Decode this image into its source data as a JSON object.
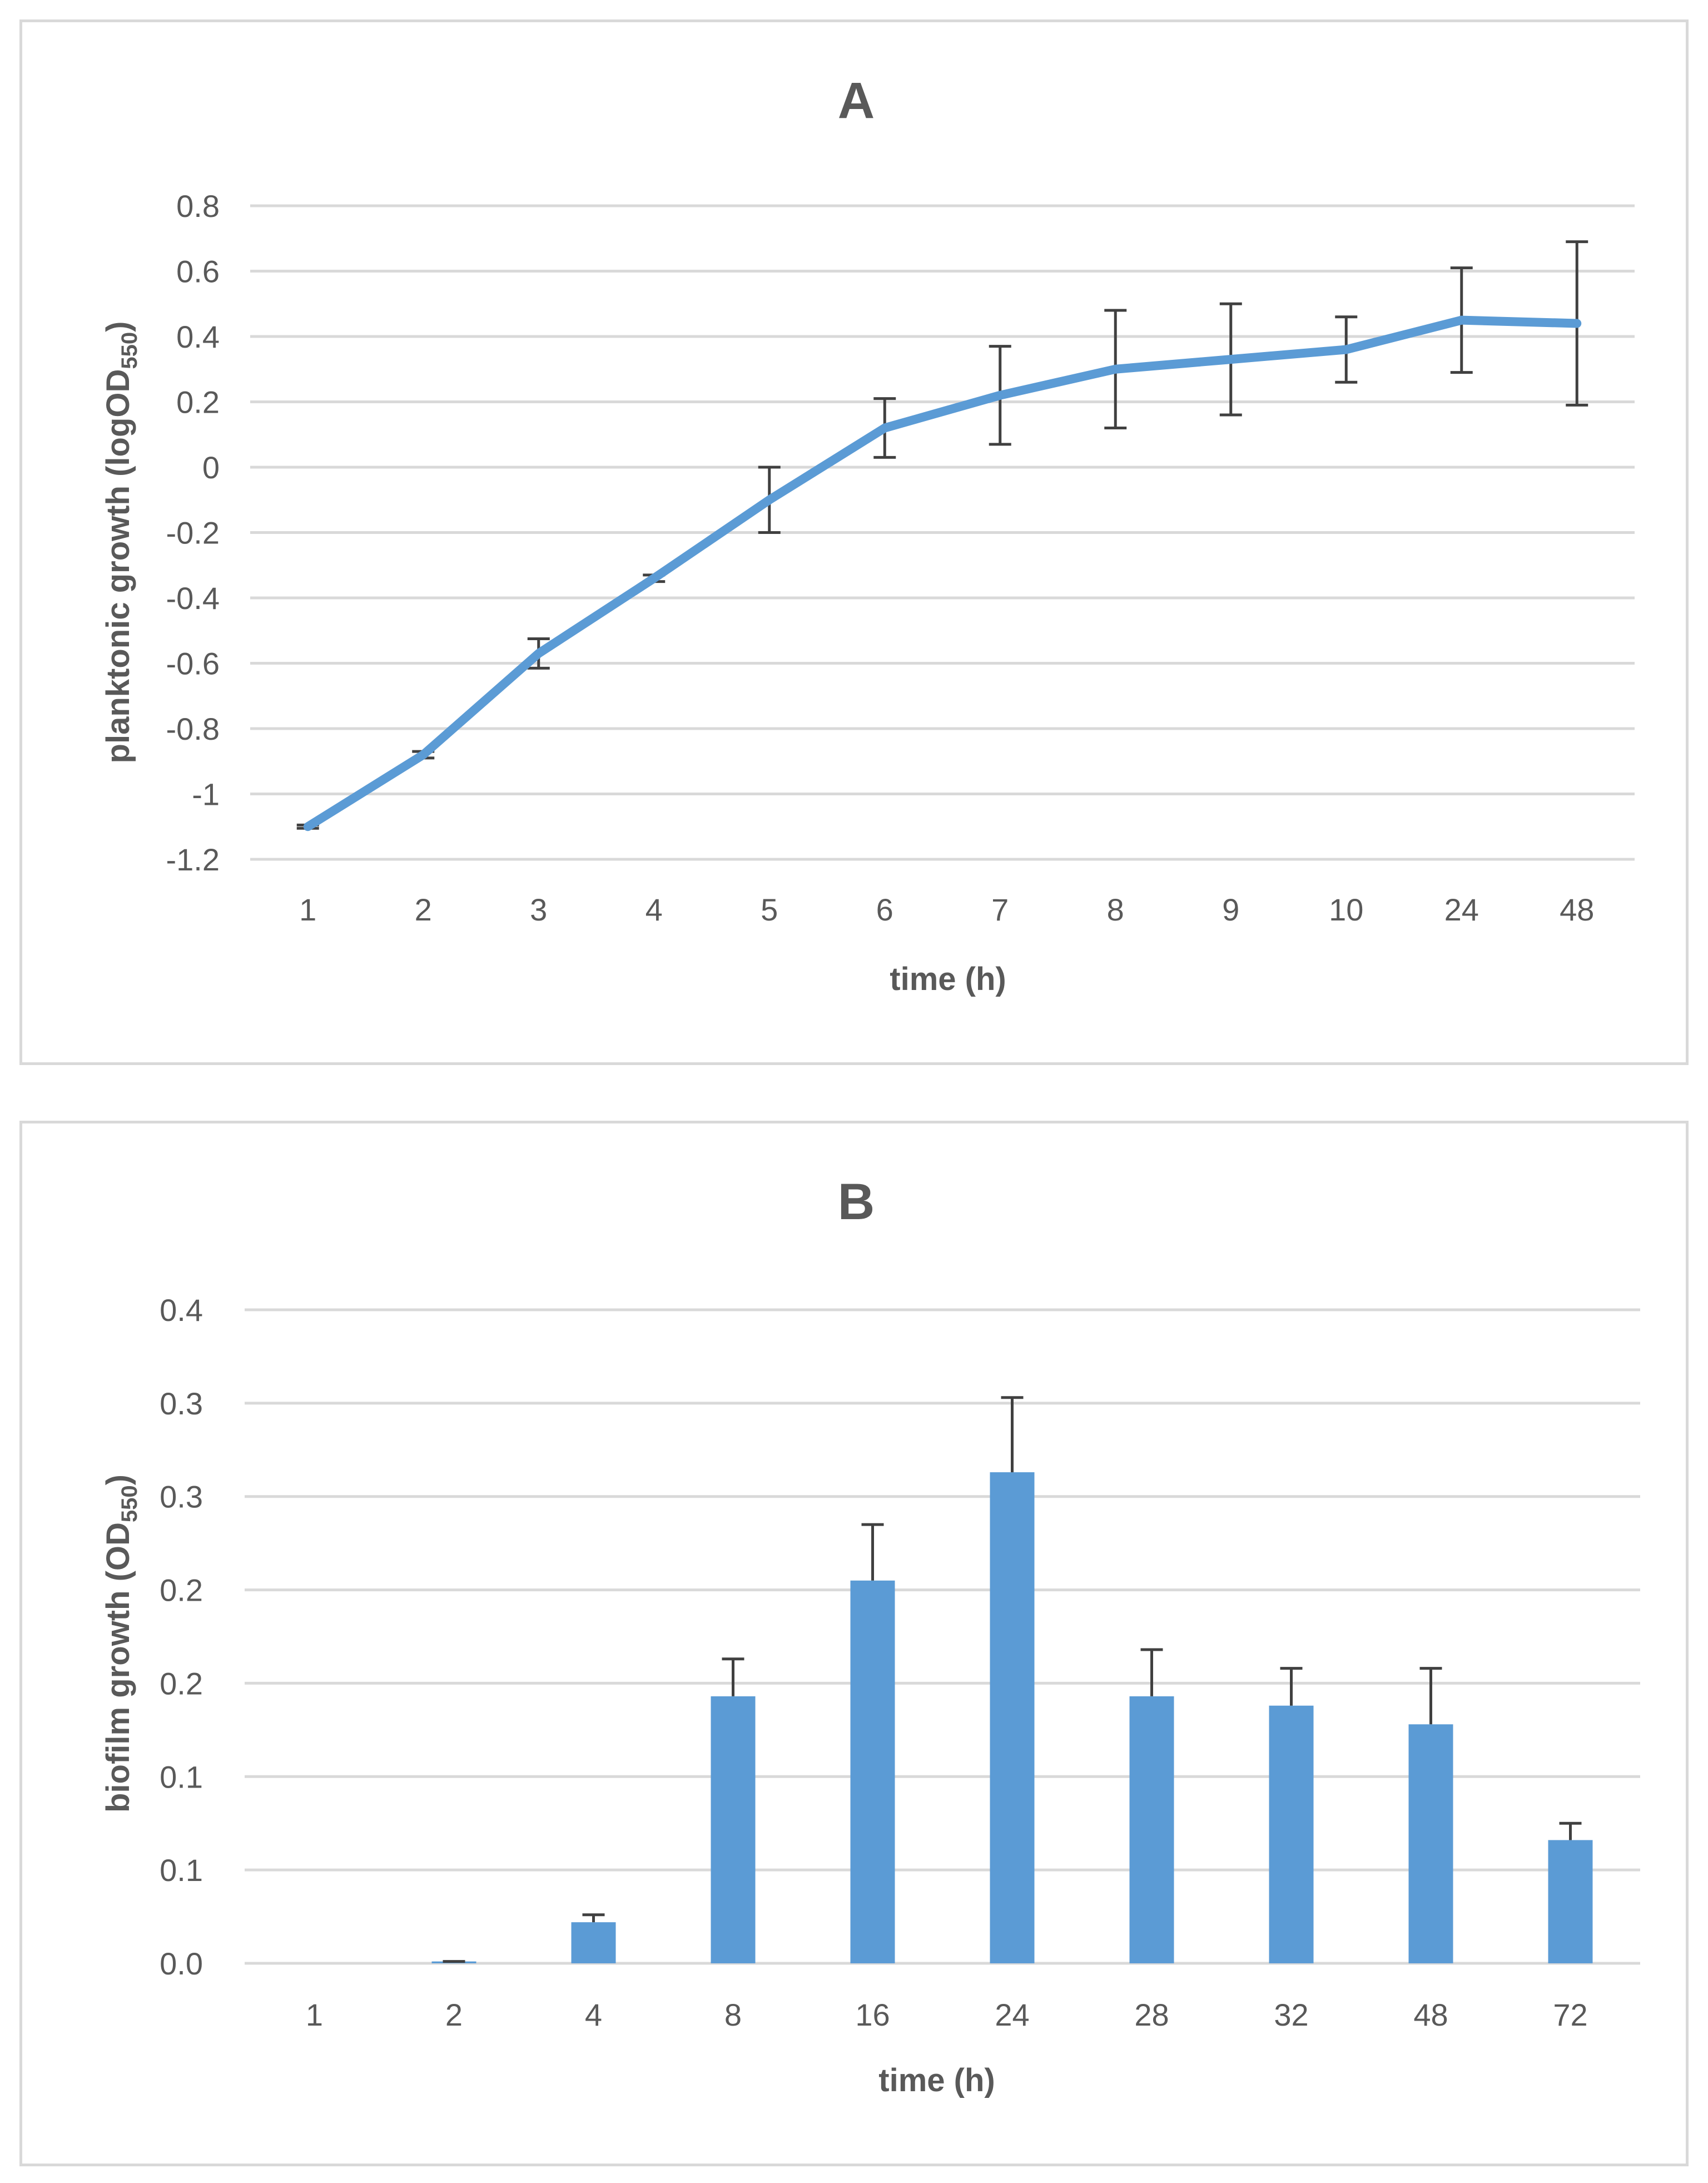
{
  "chart_data": [
    {
      "type": "line",
      "title": "A",
      "xlabel": "time (h)",
      "ylabel_main": "planktonic growth (logOD",
      "ylabel_sub": "550",
      "ylabel_end": ")",
      "categories": [
        "1",
        "2",
        "3",
        "4",
        "5",
        "6",
        "7",
        "8",
        "9",
        "10",
        "24",
        "48"
      ],
      "values": [
        -1.1,
        -0.88,
        -0.57,
        -0.34,
        -0.1,
        0.12,
        0.22,
        0.3,
        0.33,
        0.36,
        0.45,
        0.44
      ],
      "error": [
        0.005,
        0.01,
        0.045,
        0.01,
        0.1,
        0.09,
        0.15,
        0.18,
        0.17,
        0.1,
        0.16,
        0.25
      ],
      "ylim": [
        -1.2,
        0.8
      ],
      "yticks": [
        "0.8",
        "0.6",
        "0.4",
        "0.2",
        "0",
        "-0.2",
        "-0.4",
        "-0.6",
        "-0.8",
        "-1",
        "-1.2"
      ],
      "ytick_values": [
        0.8,
        0.6,
        0.4,
        0.2,
        0,
        -0.2,
        -0.4,
        -0.6,
        -0.8,
        -1,
        -1.2
      ],
      "color": "#5b9bd5",
      "grid": true
    },
    {
      "type": "bar",
      "title": "B",
      "xlabel": "time (h)",
      "ylabel_main": "biofilm growth (OD",
      "ylabel_sub": "550",
      "ylabel_end": ")",
      "categories": [
        "1",
        "2",
        "4",
        "8",
        "16",
        "24",
        "28",
        "32",
        "48",
        "72"
      ],
      "values": [
        0.0,
        0.001,
        0.022,
        0.143,
        0.205,
        0.263,
        0.143,
        0.138,
        0.128,
        0.066
      ],
      "error": [
        0.0,
        0.0,
        0.004,
        0.02,
        0.03,
        0.04,
        0.025,
        0.02,
        0.03,
        0.009
      ],
      "ylim": [
        0,
        0.35
      ],
      "yticks": [
        "0.4",
        "0.3",
        "0.3",
        "0.2",
        "0.2",
        "0.1",
        "0.1",
        "0.0"
      ],
      "ytick_values": [
        0.35,
        0.3,
        0.25,
        0.2,
        0.15,
        0.1,
        0.05,
        0
      ],
      "color": "#5b9bd5",
      "grid": true
    }
  ]
}
